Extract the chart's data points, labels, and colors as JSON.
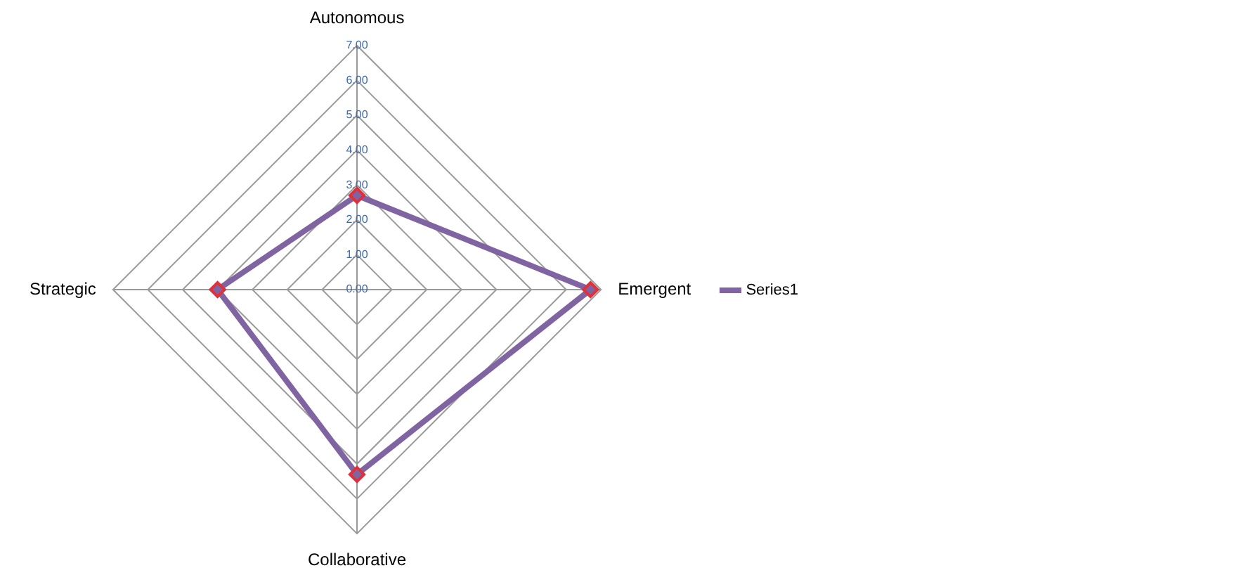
{
  "chart_data": {
    "type": "radar",
    "categories": [
      "Autonomous",
      "Emergent",
      "Collaborative",
      "Strategic"
    ],
    "series": [
      {
        "name": "Series1",
        "color": "#8064a2",
        "values": [
          2.7,
          6.7,
          5.3,
          4.0
        ]
      }
    ],
    "ylim": [
      0,
      7
    ],
    "yticks": [
      {
        "value": 0,
        "label": "0.00"
      },
      {
        "value": 1,
        "label": "1.00"
      },
      {
        "value": 2,
        "label": "2.00"
      },
      {
        "value": 3,
        "label": "3.00"
      },
      {
        "value": 4,
        "label": "4.00"
      },
      {
        "value": 5,
        "label": "5.00"
      },
      {
        "value": 6,
        "label": "6.00"
      },
      {
        "value": 7,
        "label": "7.00"
      }
    ],
    "grid": true,
    "legend": "right",
    "marker": "diamond"
  }
}
